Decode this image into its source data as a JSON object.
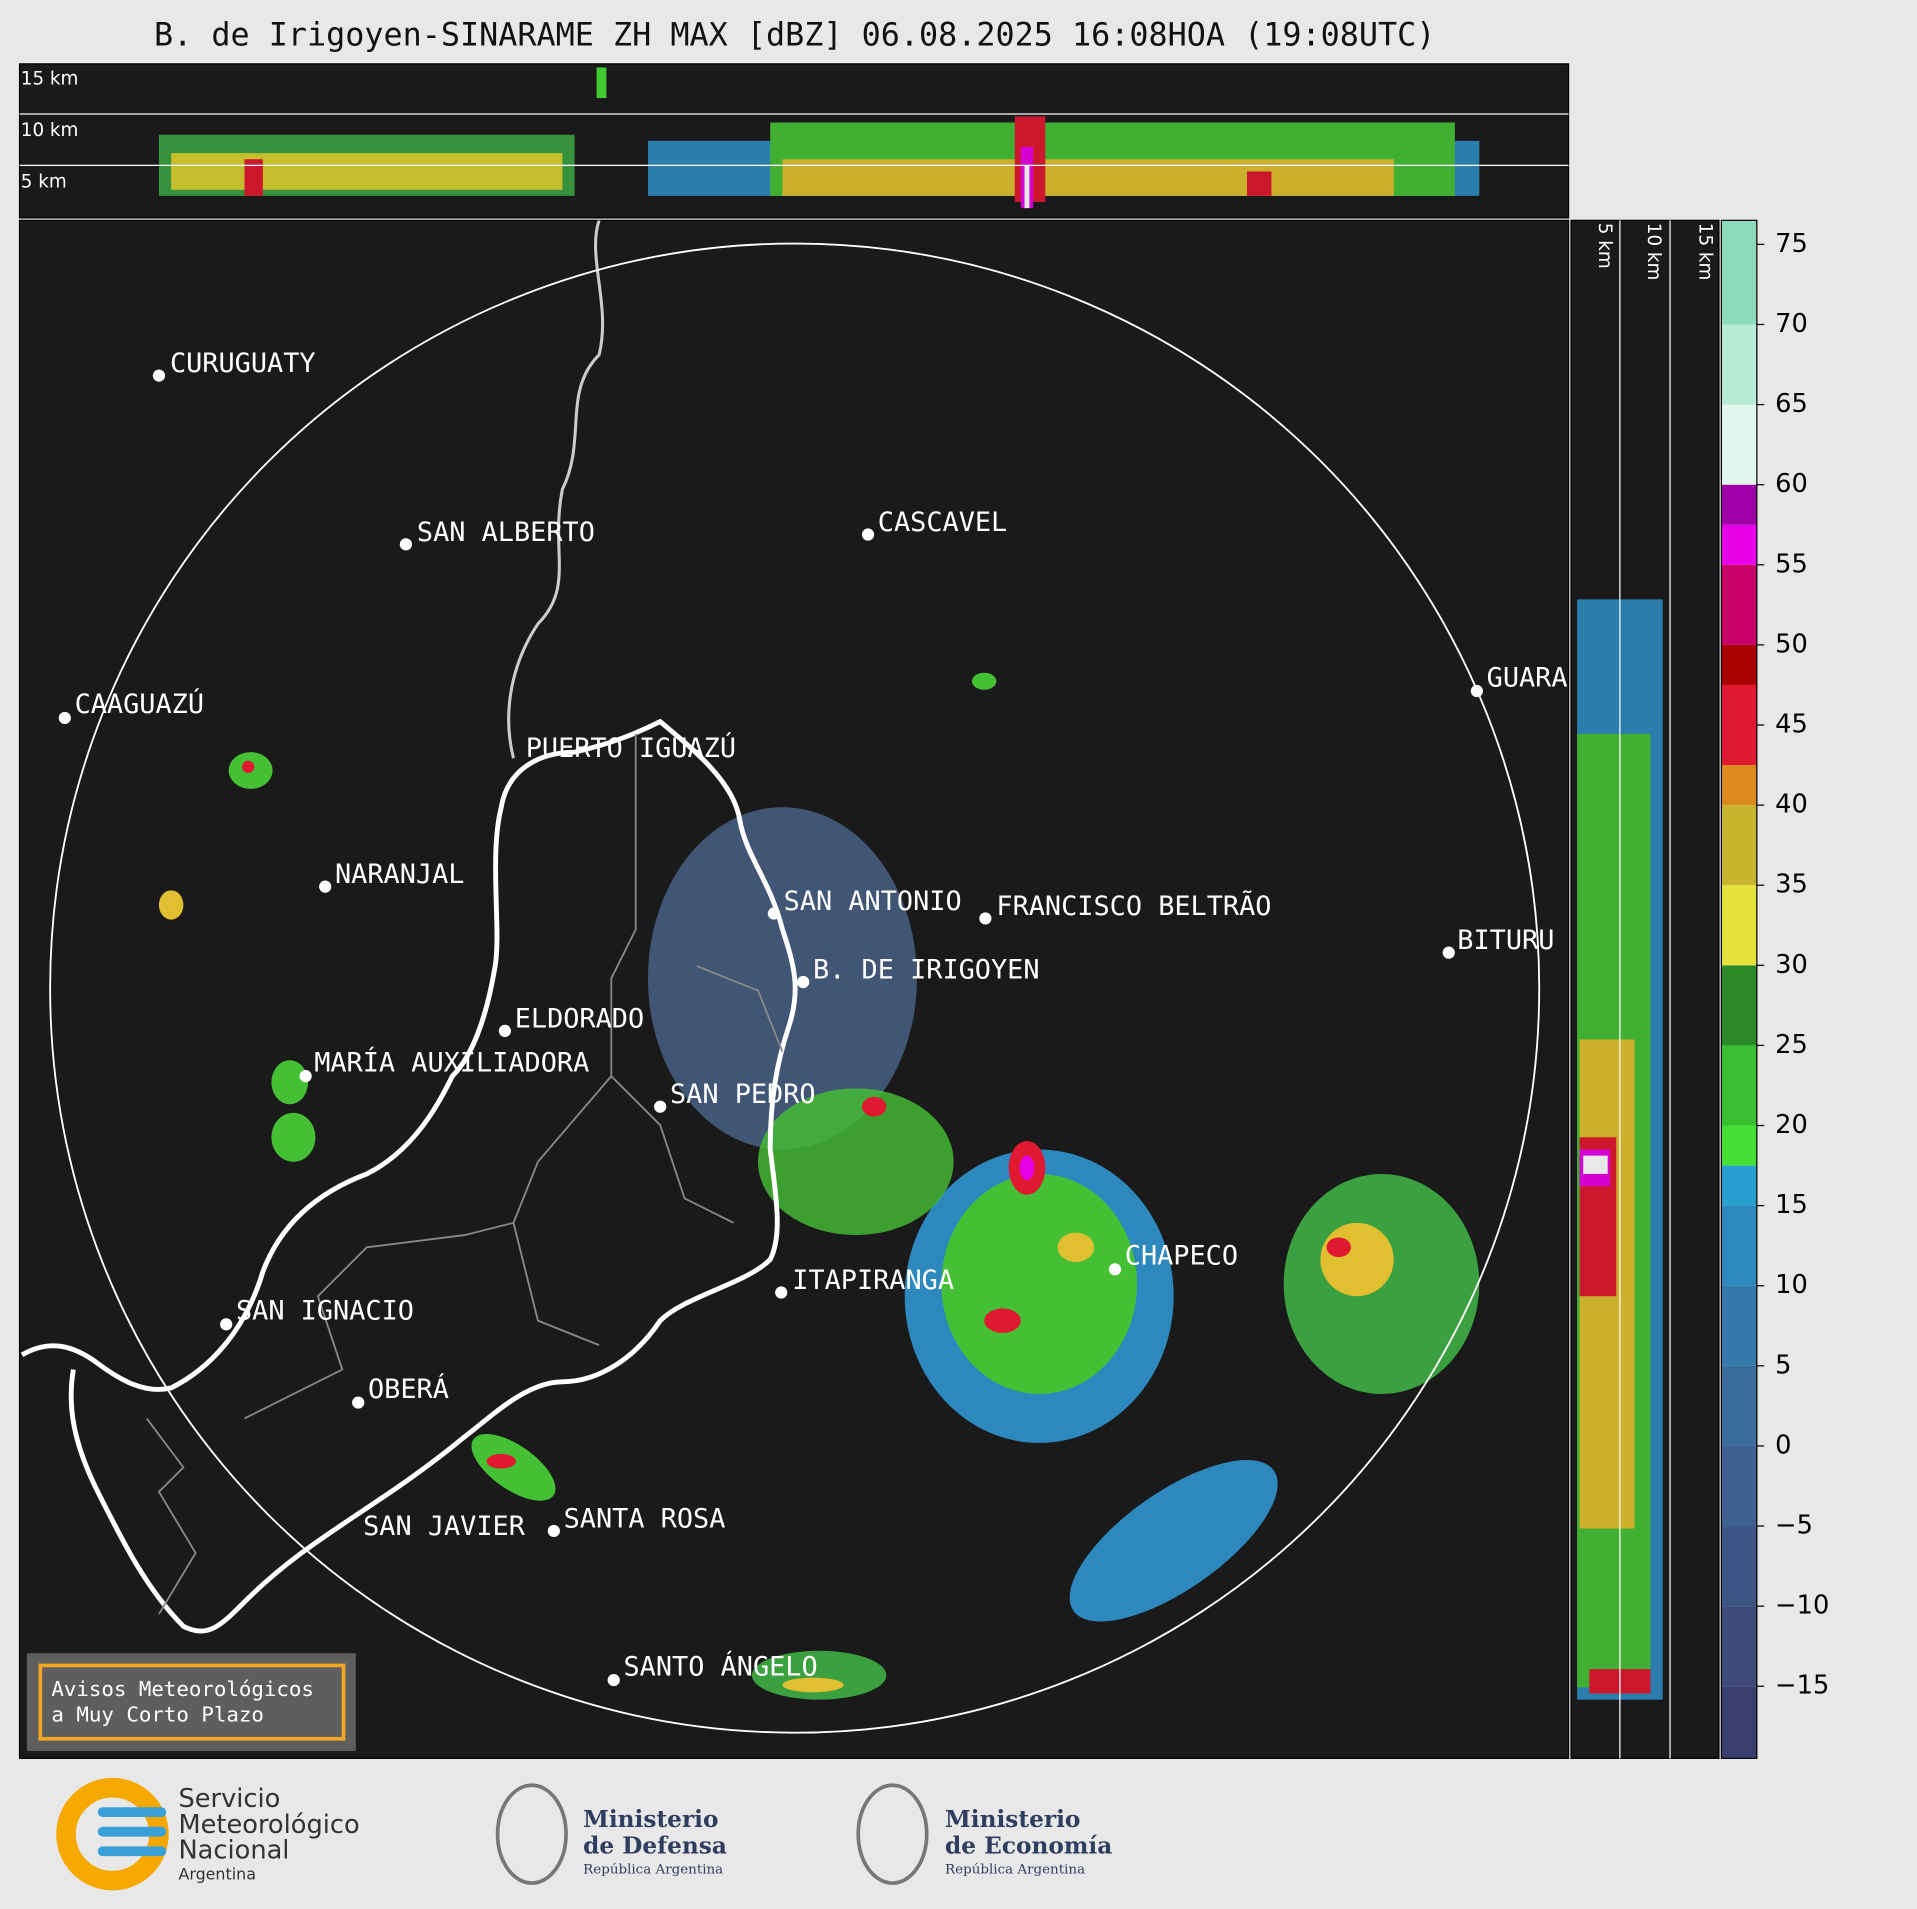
{
  "title": "B. de Irigoyen-SINARAME ZH MAX [dBZ] 06.08.2025 16:08HOA (19:08UTC)",
  "height_profiles": {
    "top_labels": [
      "15 km",
      "10 km",
      "5 km"
    ],
    "side_labels": [
      "5 km",
      "10 km",
      "15 km"
    ]
  },
  "cities": [
    "CURUGUATY",
    "SAN ALBERTO",
    "CASCAVEL",
    "CAAGUAZÚ",
    "GUARA",
    "PUERTO IGUAZÚ",
    "NARANJAL",
    "SAN ANTONIO",
    "FRANCISCO BELTRÃO",
    "BITURU",
    "B. DE IRIGOYEN",
    "ELDORADO",
    "MARÍA AUXILIADORA",
    "SAN PEDRO",
    "CHAPECO",
    "ITAPIRANGA",
    "SAN IGNACIO",
    "OBERÁ",
    "SAN JAVIER",
    "SANTA ROSA",
    "SANTO ÁNGELO"
  ],
  "colorbar": {
    "ylim": [
      -19.5,
      76.5
    ],
    "yticks": [
      75,
      70,
      65,
      60,
      55,
      50,
      45,
      40,
      35,
      30,
      25,
      20,
      15,
      10,
      5,
      0,
      {
        "value": -5,
        "label": "−5"
      },
      {
        "value": -10,
        "label": "−10"
      },
      {
        "value": -15,
        "label": "−15"
      }
    ],
    "bounds": [
      -19.5,
      -15,
      -10,
      -5,
      0,
      5,
      10,
      15,
      17.5,
      20,
      25,
      30,
      35,
      40,
      42.5,
      47.5,
      50,
      55,
      57.5,
      60,
      65,
      70,
      76.5
    ],
    "colors": [
      "#3b3f6e",
      "#3d4a7a",
      "#3d5585",
      "#3c6190",
      "#3a6d9c",
      "#3479ab",
      "#2d88bd",
      "#27a0d0",
      "#45e035",
      "#38c032",
      "#2a8a28",
      "#e6e23c",
      "#c8b42e",
      "#dc8a1e",
      "#e01830",
      "#a80000",
      "#c8006a",
      "#e800e8",
      "#a000a8",
      "#e0f5ec",
      "#b8ebd6",
      "#8cdcbc"
    ]
  },
  "warning_box": {
    "lines": [
      "Avisos Meteorológicos",
      "a Muy Corto Plazo"
    ]
  },
  "footer": {
    "logos": [
      {
        "lines": [
          "Servicio",
          "Meteorológico",
          "Nacional",
          "Argentina"
        ]
      },
      {
        "lines": [
          "Ministerio",
          "de Defensa",
          "República Argentina"
        ]
      },
      {
        "lines": [
          "Ministerio",
          "de Economía",
          "República Argentina"
        ]
      }
    ]
  }
}
